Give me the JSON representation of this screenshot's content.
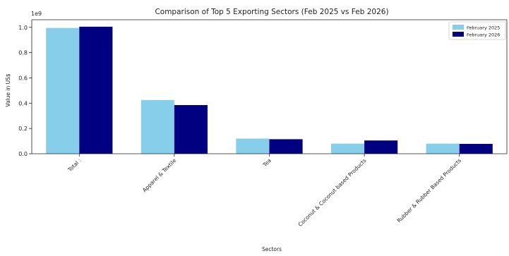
{
  "chart_data": {
    "type": "bar",
    "title": "Comparison of Top 5 Exporting Sectors (Feb 2025 vs Feb 2026)",
    "xlabel": "Sectors",
    "ylabel": "Value in US$",
    "offset_label": "1e9",
    "categories": [
      "Total :",
      "Apparel & Textile",
      "Tea",
      "Coconut & Coconut based Products",
      "Rubber & Rubber Based Products"
    ],
    "series": [
      {
        "name": "February 2025",
        "color": "#87ceeb",
        "values": [
          0.995,
          0.425,
          0.12,
          0.08,
          0.08
        ]
      },
      {
        "name": "February 2026",
        "color": "#000080",
        "values": [
          1.005,
          0.385,
          0.115,
          0.105,
          0.078
        ]
      }
    ],
    "yticks": [
      "0.0",
      "0.2",
      "0.4",
      "0.6",
      "0.8",
      "1.0"
    ],
    "ylim": [
      0,
      1.06
    ],
    "grid": false,
    "legend_position": "top-right"
  }
}
